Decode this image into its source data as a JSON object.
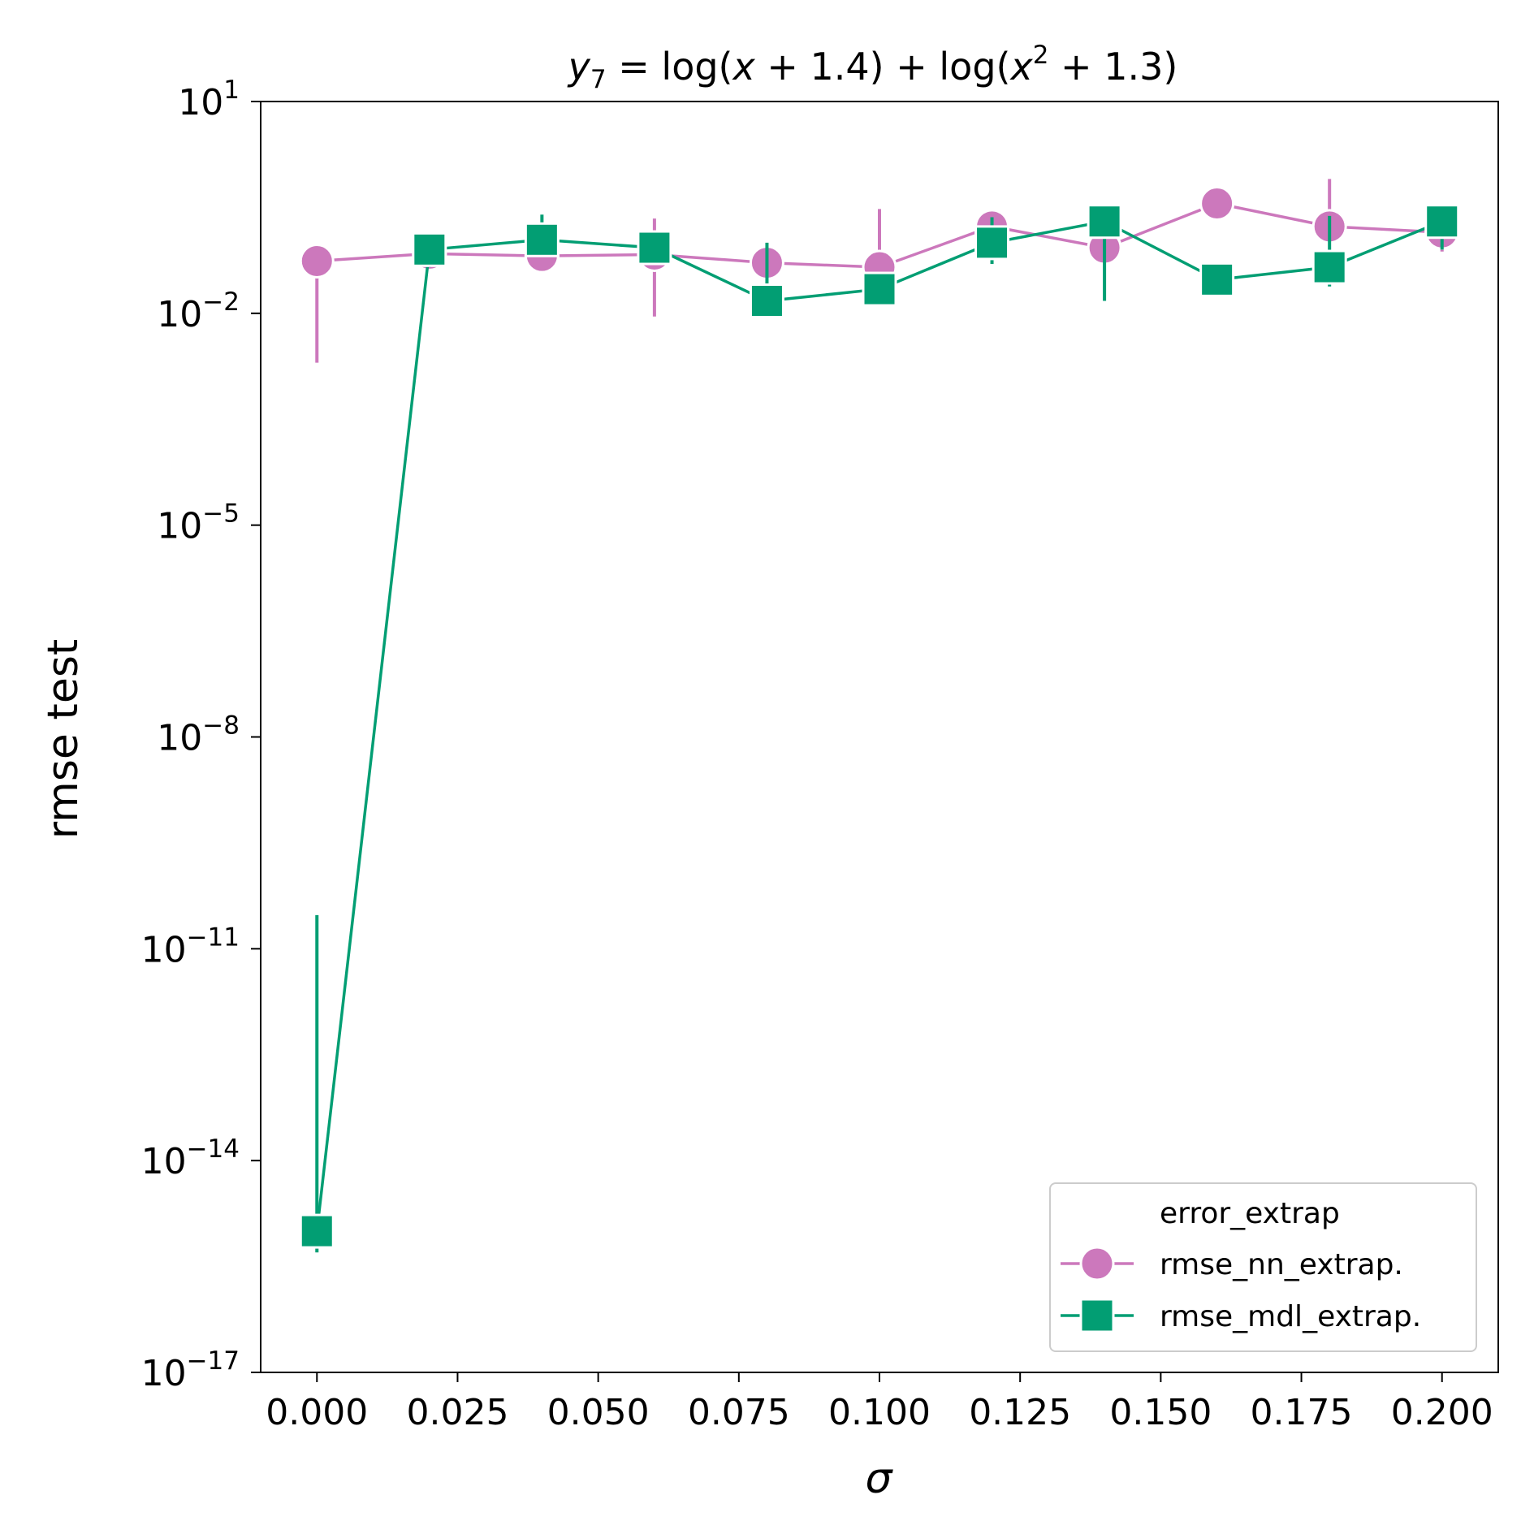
{
  "chart_data": {
    "type": "line",
    "title_parts": {
      "y": "y",
      "sub": "7",
      "mid": " = log(",
      "x1": "x",
      "mid2": " + 1.4) + log(",
      "x2": "x",
      "sup": "2",
      "end": " + 1.3)"
    },
    "xlabel": "σ",
    "ylabel": "rmse test",
    "xlim": [
      -0.01,
      0.21
    ],
    "ylim_exp": [
      -17,
      1
    ],
    "y_scale": "log",
    "grid": false,
    "x_ticks": [
      0.0,
      0.025,
      0.05,
      0.075,
      0.1,
      0.125,
      0.15,
      0.175,
      0.2
    ],
    "x_tick_labels": [
      "0.000",
      "0.025",
      "0.050",
      "0.075",
      "0.100",
      "0.125",
      "0.150",
      "0.175",
      "0.200"
    ],
    "y_ticks": [
      {
        "value": 10,
        "base": "10",
        "exp": "1"
      },
      {
        "value": 0.01,
        "base": "10",
        "exp": "−2"
      },
      {
        "value": 1e-05,
        "base": "10",
        "exp": "−5"
      },
      {
        "value": 1e-08,
        "base": "10",
        "exp": "−8"
      },
      {
        "value": 1e-11,
        "base": "10",
        "exp": "−11"
      },
      {
        "value": 1e-14,
        "base": "10",
        "exp": "−14"
      },
      {
        "value": 1e-17,
        "base": "10",
        "exp": "−17"
      }
    ],
    "x": [
      0.0,
      0.02,
      0.04,
      0.06,
      0.08,
      0.1,
      0.12,
      0.14,
      0.16,
      0.18,
      0.2
    ],
    "series": [
      {
        "name": "rmse_nn_extrap.",
        "color": "#cc78bc",
        "marker": "circle",
        "values": [
          0.055,
          0.07,
          0.065,
          0.068,
          0.052,
          0.045,
          0.17,
          0.085,
          0.36,
          0.17,
          0.14
        ],
        "err_low": [
          0.002,
          0.065,
          0.06,
          0.009,
          0.04,
          0.03,
          0.08,
          0.07,
          0.28,
          0.13,
          0.075
        ],
        "err_high": [
          0.06,
          0.08,
          0.07,
          0.22,
          0.065,
          0.3,
          0.2,
          0.1,
          0.42,
          0.8,
          0.32
        ]
      },
      {
        "name": "rmse_mdl_extrap.",
        "color": "#029e73",
        "marker": "square",
        "values": [
          1e-15,
          0.08,
          0.11,
          0.085,
          0.015,
          0.022,
          0.1,
          0.2,
          0.03,
          0.045,
          0.2
        ],
        "err_low": [
          5e-16,
          0.045,
          0.09,
          0.075,
          0.012,
          0.017,
          0.05,
          0.015,
          0.026,
          0.024,
          0.08
        ],
        "err_high": [
          3e-11,
          0.09,
          0.25,
          0.1,
          0.1,
          0.028,
          0.23,
          0.24,
          0.04,
          0.24,
          0.25
        ]
      }
    ],
    "legend": {
      "title": "error_extrap",
      "location": "lower-right"
    }
  }
}
